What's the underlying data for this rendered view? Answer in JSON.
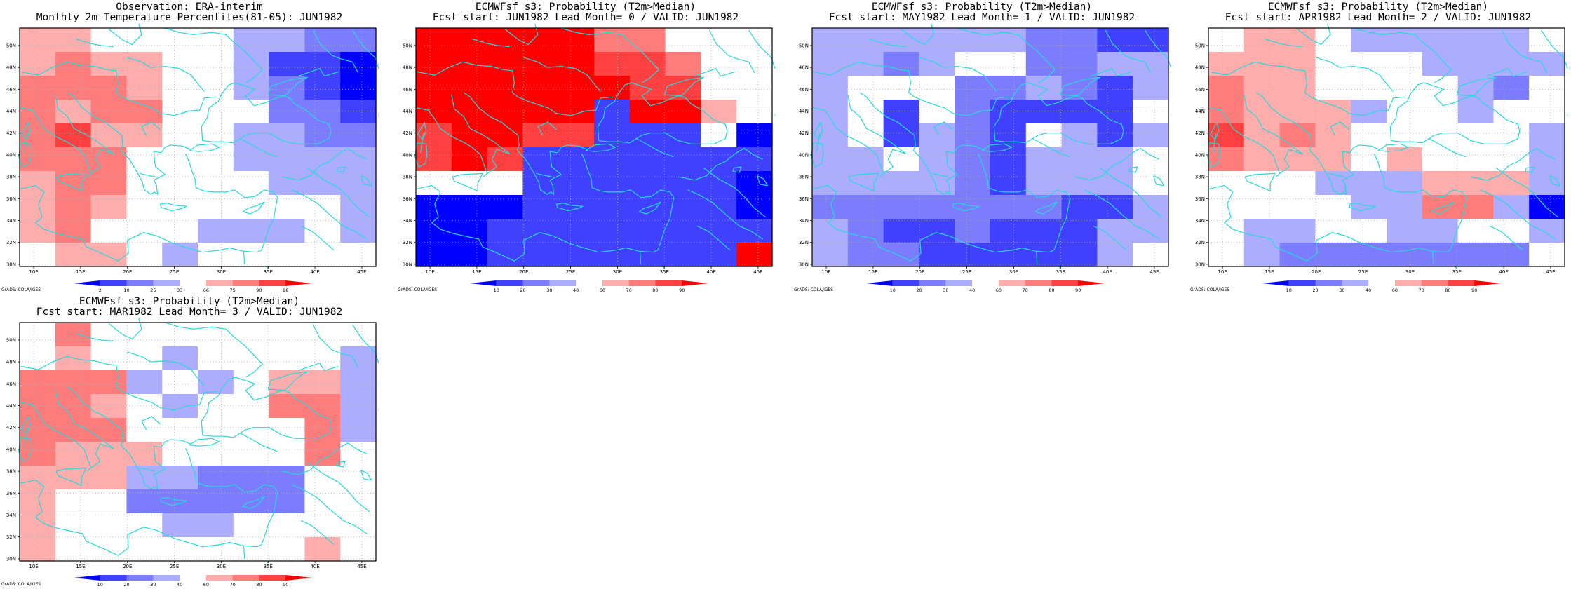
{
  "palette": {
    "cells": [
      "#0000ff",
      "#4040ff",
      "#7c7cff",
      "#adadff",
      "#ffffff",
      "#ffffff",
      "#ffadad",
      "#ff7c7c",
      "#ff4040",
      "#ff0000"
    ],
    "coast": "#28d8d8",
    "grid": "#b0b0b0",
    "frame": "#000000"
  },
  "axes": {
    "lon_ticks": [
      "10E",
      "15E",
      "20E",
      "25E",
      "30E",
      "35E",
      "40E",
      "45E"
    ],
    "lat_ticks": [
      "30N",
      "32N",
      "34N",
      "36N",
      "38N",
      "40N",
      "42N",
      "44N",
      "46N",
      "48N",
      "50N"
    ]
  },
  "credit": "GrADS: COLA/IGES",
  "panels": [
    {
      "title1": "Observation: ERA-interim",
      "title2": "Monthly 2m Temperature Percentiles(81-05): JUN1982",
      "cbar": [
        "2",
        "10",
        "25",
        "33",
        "66",
        "75",
        "90",
        "98"
      ],
      "grid": [
        "6655443322",
        "6766443110",
        "7776543210",
        "7677554221",
        "7866443322",
        "7775443333",
        "6775554333",
        "6765544443",
        "6754433343",
        "5664344444"
      ]
    },
    {
      "title1": "ECMWFsf s3: Probability (T2m>Median)",
      "title2": "Fcst start: JUN1982  Lead Month= 0 / VALID: JUN1982",
      "cbar": [
        "10",
        "20",
        "30",
        "40",
        "60",
        "70",
        "80",
        "90"
      ],
      "grid": [
        "9999977544",
        "9999988744",
        "9999998854",
        "9999919964",
        "8998811140",
        "8981111111",
        "5541111110",
        "0001111110",
        "0011111111",
        "0011111119"
      ]
    },
    {
      "title1": "ECMWFsf s3: Probability (T2m>Median)",
      "title2": "Fcst start: MAY1982  Lead Month= 1 / VALID: JUN1982",
      "cbar": [
        "10",
        "20",
        "30",
        "40",
        "60",
        "70",
        "80",
        "90"
      ],
      "grid": [
        "3333332211",
        "3323552233",
        "3444223213",
        "3414211114",
        "3413214313",
        "3343213334",
        "3333213334",
        "2222222113",
        "3211211133",
        "3221111134"
      ]
    },
    {
      "title1": "ECMWFsf s3: Probability (T2m>Median)",
      "title2": "Fcst start: APR1982  Lead Month= 2 / VALID: JUN1982",
      "cbar": [
        "10",
        "20",
        "30",
        "40",
        "60",
        "70",
        "80",
        "90"
      ],
      "grid": [
        "5665333335",
        "6665443333",
        "7665454324",
        "7666344344",
        "8676444543",
        "7666464543",
        "5553336663",
        "5444337730",
        "5334433443",
        "5322222224"
      ]
    },
    {
      "title1": "ECMWFsf s3: Probability (T2m>Median)",
      "title2": "Fcst start: MAR1982  Lead Month= 3 / VALID: JUN1982",
      "cbar": [
        "10",
        "20",
        "30",
        "40",
        "60",
        "70",
        "80",
        "90"
      ],
      "grid": [
        "5755555555",
        "5655355553",
        "7773535663",
        "7765345773",
        "7774454573",
        "7666454575",
        "6663322255",
        "6552222255",
        "6544334555",
        "6554444565"
      ]
    }
  ]
}
